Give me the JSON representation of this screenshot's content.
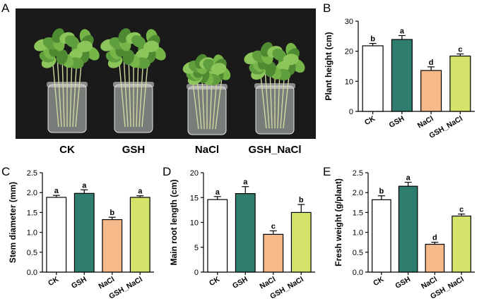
{
  "panels": {
    "A": {
      "letter": "A",
      "labels": [
        "CK",
        "GSH",
        "NaCl",
        "GSH_NaCl"
      ]
    },
    "B": {
      "letter": "B"
    },
    "C": {
      "letter": "C"
    },
    "D": {
      "letter": "D"
    },
    "E": {
      "letter": "E"
    }
  },
  "colors": {
    "CK": "#ffffff",
    "GSH": "#2e7d6f",
    "NaCl": "#f5b98a",
    "GSH_NaCl": "#d4e36a",
    "photo_bg": "#1a1a1a"
  },
  "chart_data": [
    {
      "panel": "B",
      "type": "bar",
      "categories": [
        "CK",
        "GSH",
        "NaCl",
        "GSH_NaCl"
      ],
      "values": [
        21.8,
        23.9,
        13.6,
        18.4
      ],
      "errors": [
        0.8,
        1.3,
        1.2,
        0.7
      ],
      "letters": [
        "b",
        "a",
        "d",
        "c"
      ],
      "ylabel": "Plant height (cm)",
      "ylim": [
        0,
        30
      ],
      "yticks": [
        0,
        10,
        20,
        30
      ]
    },
    {
      "panel": "C",
      "type": "bar",
      "categories": [
        "CK",
        "GSH",
        "NaCl",
        "GSH_NaCl"
      ],
      "values": [
        1.88,
        1.98,
        1.32,
        1.88
      ],
      "errors": [
        0.05,
        0.09,
        0.06,
        0.04
      ],
      "letters": [
        "a",
        "a",
        "b",
        "a"
      ],
      "ylabel": "Stem diameter (mm)",
      "ylim": [
        0,
        2.5
      ],
      "yticks": [
        0.0,
        0.5,
        1.0,
        1.5,
        2.0,
        2.5
      ]
    },
    {
      "panel": "D",
      "type": "bar",
      "categories": [
        "CK",
        "GSH",
        "NaCl",
        "GSH_NaCl"
      ],
      "values": [
        14.6,
        15.8,
        7.6,
        12.0
      ],
      "errors": [
        0.6,
        1.4,
        0.7,
        1.6
      ],
      "letters": [
        "a",
        "a",
        "c",
        "b"
      ],
      "ylabel": "Main root length (cm)",
      "ylim": [
        0,
        20
      ],
      "yticks": [
        0,
        5,
        10,
        15,
        20
      ]
    },
    {
      "panel": "E",
      "type": "bar",
      "categories": [
        "CK",
        "GSH",
        "NaCl",
        "GSH_NaCl"
      ],
      "values": [
        1.82,
        2.16,
        0.7,
        1.41
      ],
      "errors": [
        0.1,
        0.1,
        0.05,
        0.05
      ],
      "letters": [
        "b",
        "a",
        "d",
        "c"
      ],
      "ylabel": "Fresh weight (g/plant)",
      "ylim": [
        0,
        2.5
      ],
      "yticks": [
        0.0,
        0.5,
        1.0,
        1.5,
        2.0,
        2.5
      ]
    }
  ]
}
